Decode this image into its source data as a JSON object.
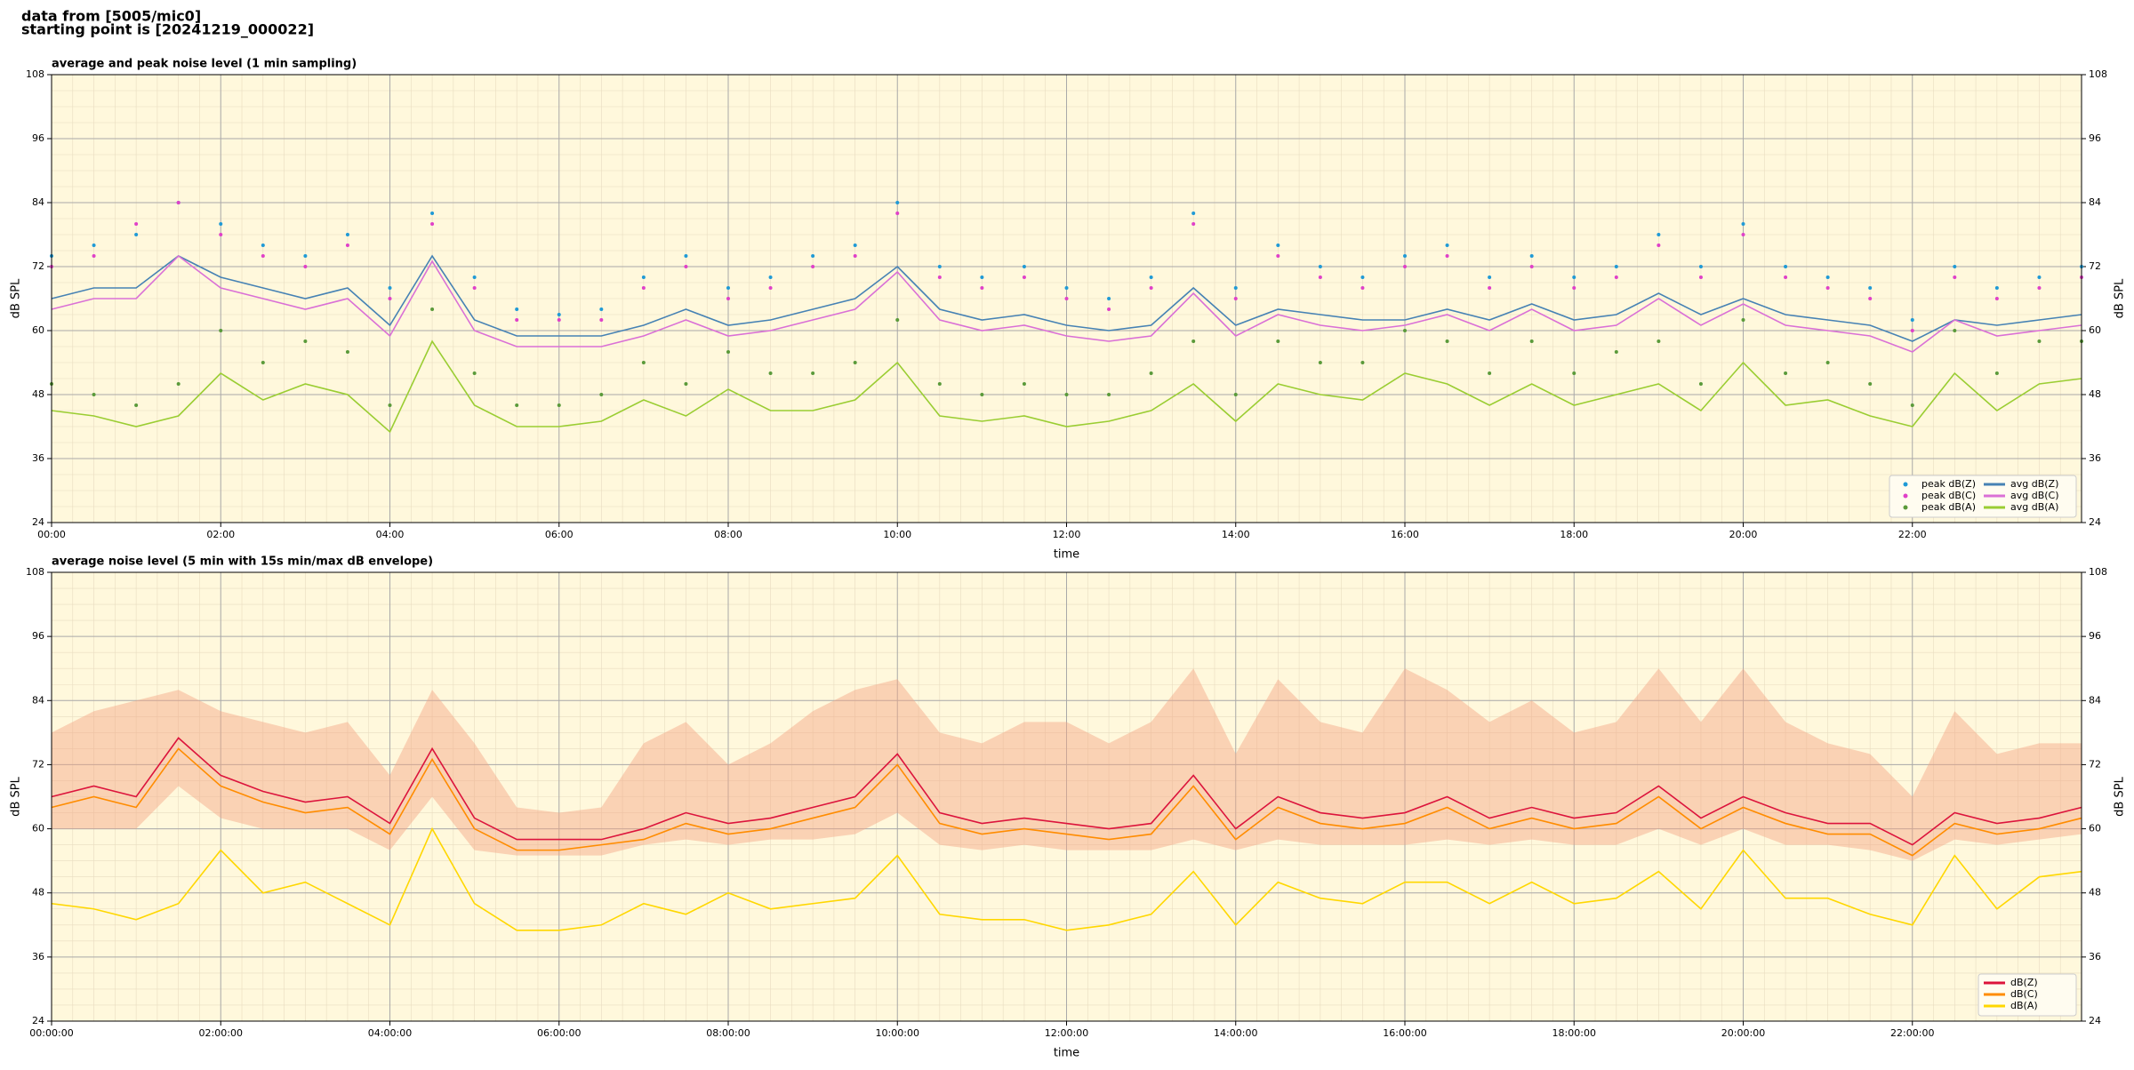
{
  "header_lines": [
    "data from [5005/mic0]",
    "starting point is [20241219_000022]"
  ],
  "chart_data": [
    {
      "type": "line",
      "title": "average and peak noise level (1 min sampling)",
      "xlabel": "time",
      "ylabel": "dB SPL",
      "x": [
        0,
        0.5,
        1,
        1.5,
        2,
        2.5,
        3,
        3.5,
        4,
        4.5,
        5,
        5.5,
        6,
        6.5,
        7,
        7.5,
        8,
        8.5,
        9,
        9.5,
        10,
        10.5,
        11,
        11.5,
        12,
        12.5,
        13,
        13.5,
        14,
        14.5,
        15,
        15.5,
        16,
        16.5,
        17,
        17.5,
        18,
        18.5,
        19,
        19.5,
        20,
        20.5,
        21,
        21.5,
        22,
        22.5,
        23,
        23.5,
        24
      ],
      "xlim": [
        0,
        24
      ],
      "xticks": [
        {
          "value": 0,
          "label": "00:00"
        },
        {
          "value": 2,
          "label": "02:00"
        },
        {
          "value": 4,
          "label": "04:00"
        },
        {
          "value": 6,
          "label": "06:00"
        },
        {
          "value": 8,
          "label": "08:00"
        },
        {
          "value": 10,
          "label": "10:00"
        },
        {
          "value": 12,
          "label": "12:00"
        },
        {
          "value": 14,
          "label": "14:00"
        },
        {
          "value": 16,
          "label": "16:00"
        },
        {
          "value": 18,
          "label": "18:00"
        },
        {
          "value": 20,
          "label": "20:00"
        },
        {
          "value": 22,
          "label": "22:00"
        }
      ],
      "ylim": [
        24,
        108
      ],
      "yticks": [
        24,
        36,
        48,
        60,
        72,
        84,
        96,
        108
      ],
      "grid": true,
      "legend": "lower right",
      "legend_columns": 2,
      "series": [
        {
          "name": "peak dB(Z)",
          "type": "scatter",
          "color": "#1f9ad6",
          "values": [
            74,
            76,
            78,
            84,
            80,
            76,
            74,
            78,
            68,
            82,
            70,
            64,
            63,
            64,
            70,
            74,
            68,
            70,
            74,
            76,
            84,
            72,
            70,
            72,
            68,
            66,
            70,
            82,
            68,
            76,
            72,
            70,
            74,
            76,
            70,
            74,
            70,
            72,
            78,
            72,
            80,
            72,
            70,
            68,
            62,
            72,
            68,
            70,
            72
          ]
        },
        {
          "name": "peak dB(C)",
          "type": "scatter",
          "color": "#e040c8",
          "values": [
            72,
            74,
            80,
            84,
            78,
            74,
            72,
            76,
            66,
            80,
            68,
            62,
            62,
            62,
            68,
            72,
            66,
            68,
            72,
            74,
            82,
            70,
            68,
            70,
            66,
            64,
            68,
            80,
            66,
            74,
            70,
            68,
            72,
            74,
            68,
            72,
            68,
            70,
            76,
            70,
            78,
            70,
            68,
            66,
            60,
            70,
            66,
            68,
            70
          ]
        },
        {
          "name": "peak dB(A)",
          "type": "scatter",
          "color": "#5a9a3a",
          "values": [
            50,
            48,
            46,
            50,
            60,
            54,
            58,
            56,
            46,
            64,
            52,
            46,
            46,
            48,
            54,
            50,
            56,
            52,
            52,
            54,
            62,
            50,
            48,
            50,
            48,
            48,
            52,
            58,
            48,
            58,
            54,
            54,
            60,
            58,
            52,
            58,
            52,
            56,
            58,
            50,
            62,
            52,
            54,
            50,
            46,
            60,
            52,
            58,
            58
          ]
        },
        {
          "name": "avg dB(Z)",
          "type": "line",
          "color": "#4682b4",
          "values": [
            66,
            68,
            68,
            74,
            70,
            68,
            66,
            68,
            61,
            74,
            62,
            59,
            59,
            59,
            61,
            64,
            61,
            62,
            64,
            66,
            72,
            64,
            62,
            63,
            61,
            60,
            61,
            68,
            61,
            64,
            63,
            62,
            62,
            64,
            62,
            65,
            62,
            63,
            67,
            63,
            66,
            63,
            62,
            61,
            58,
            62,
            61,
            62,
            63
          ]
        },
        {
          "name": "avg dB(C)",
          "type": "line",
          "color": "#da70d6",
          "values": [
            64,
            66,
            66,
            74,
            68,
            66,
            64,
            66,
            59,
            73,
            60,
            57,
            57,
            57,
            59,
            62,
            59,
            60,
            62,
            64,
            71,
            62,
            60,
            61,
            59,
            58,
            59,
            67,
            59,
            63,
            61,
            60,
            61,
            63,
            60,
            64,
            60,
            61,
            66,
            61,
            65,
            61,
            60,
            59,
            56,
            62,
            59,
            60,
            61
          ]
        },
        {
          "name": "avg dB(A)",
          "type": "line",
          "color": "#9acd32",
          "values": [
            45,
            44,
            42,
            44,
            52,
            47,
            50,
            48,
            41,
            58,
            46,
            42,
            42,
            43,
            47,
            44,
            49,
            45,
            45,
            47,
            54,
            44,
            43,
            44,
            42,
            43,
            45,
            50,
            43,
            50,
            48,
            47,
            52,
            50,
            46,
            50,
            46,
            48,
            50,
            45,
            54,
            46,
            47,
            44,
            42,
            52,
            45,
            50,
            51
          ]
        }
      ]
    },
    {
      "type": "line",
      "title": "average noise level (5 min with 15s min/max dB envelope)",
      "xlabel": "time",
      "ylabel": "dB SPL",
      "x": [
        0,
        0.5,
        1,
        1.5,
        2,
        2.5,
        3,
        3.5,
        4,
        4.5,
        5,
        5.5,
        6,
        6.5,
        7,
        7.5,
        8,
        8.5,
        9,
        9.5,
        10,
        10.5,
        11,
        11.5,
        12,
        12.5,
        13,
        13.5,
        14,
        14.5,
        15,
        15.5,
        16,
        16.5,
        17,
        17.5,
        18,
        18.5,
        19,
        19.5,
        20,
        20.5,
        21,
        21.5,
        22,
        22.5,
        23,
        23.5,
        24
      ],
      "xlim": [
        0,
        24
      ],
      "xticks": [
        {
          "value": 0,
          "label": "00:00:00"
        },
        {
          "value": 2,
          "label": "02:00:00"
        },
        {
          "value": 4,
          "label": "04:00:00"
        },
        {
          "value": 6,
          "label": "06:00:00"
        },
        {
          "value": 8,
          "label": "08:00:00"
        },
        {
          "value": 10,
          "label": "10:00:00"
        },
        {
          "value": 12,
          "label": "12:00:00"
        },
        {
          "value": 14,
          "label": "14:00:00"
        },
        {
          "value": 16,
          "label": "16:00:00"
        },
        {
          "value": 18,
          "label": "18:00:00"
        },
        {
          "value": 20,
          "label": "20:00:00"
        },
        {
          "value": 22,
          "label": "22:00:00"
        }
      ],
      "ylim": [
        24,
        108
      ],
      "yticks": [
        24,
        36,
        48,
        60,
        72,
        84,
        96,
        108
      ],
      "grid": true,
      "legend": "lower right",
      "legend_columns": 1,
      "envelope": {
        "color": "#f4a582",
        "lower": [
          60,
          60,
          60,
          68,
          62,
          60,
          60,
          60,
          56,
          66,
          56,
          55,
          55,
          55,
          57,
          58,
          57,
          58,
          58,
          59,
          63,
          57,
          56,
          57,
          56,
          56,
          56,
          58,
          56,
          58,
          57,
          57,
          57,
          58,
          57,
          58,
          57,
          57,
          60,
          57,
          60,
          57,
          57,
          56,
          54,
          58,
          57,
          58,
          59
        ],
        "upper": [
          78,
          82,
          84,
          86,
          82,
          80,
          78,
          80,
          70,
          86,
          76,
          64,
          63,
          64,
          76,
          80,
          72,
          76,
          82,
          86,
          88,
          78,
          76,
          80,
          80,
          76,
          80,
          90,
          74,
          88,
          80,
          78,
          90,
          86,
          80,
          84,
          78,
          80,
          90,
          80,
          90,
          80,
          76,
          74,
          66,
          82,
          74,
          76,
          76
        ]
      },
      "series": [
        {
          "name": "dB(Z)",
          "type": "line",
          "color": "#dc143c",
          "values": [
            66,
            68,
            66,
            77,
            70,
            67,
            65,
            66,
            61,
            75,
            62,
            58,
            58,
            58,
            60,
            63,
            61,
            62,
            64,
            66,
            74,
            63,
            61,
            62,
            61,
            60,
            61,
            70,
            60,
            66,
            63,
            62,
            63,
            66,
            62,
            64,
            62,
            63,
            68,
            62,
            66,
            63,
            61,
            61,
            57,
            63,
            61,
            62,
            64
          ]
        },
        {
          "name": "dB(C)",
          "type": "line",
          "color": "#ff8c00",
          "values": [
            64,
            66,
            64,
            75,
            68,
            65,
            63,
            64,
            59,
            73,
            60,
            56,
            56,
            57,
            58,
            61,
            59,
            60,
            62,
            64,
            72,
            61,
            59,
            60,
            59,
            58,
            59,
            68,
            58,
            64,
            61,
            60,
            61,
            64,
            60,
            62,
            60,
            61,
            66,
            60,
            64,
            61,
            59,
            59,
            55,
            61,
            59,
            60,
            62
          ]
        },
        {
          "name": "dB(A)",
          "type": "line",
          "color": "#ffd700",
          "values": [
            46,
            45,
            43,
            46,
            56,
            48,
            50,
            46,
            42,
            60,
            46,
            41,
            41,
            42,
            46,
            44,
            48,
            45,
            46,
            47,
            55,
            44,
            43,
            43,
            41,
            42,
            44,
            52,
            42,
            50,
            47,
            46,
            50,
            50,
            46,
            50,
            46,
            47,
            52,
            45,
            56,
            47,
            47,
            44,
            42,
            55,
            45,
            51,
            52
          ]
        }
      ]
    }
  ]
}
